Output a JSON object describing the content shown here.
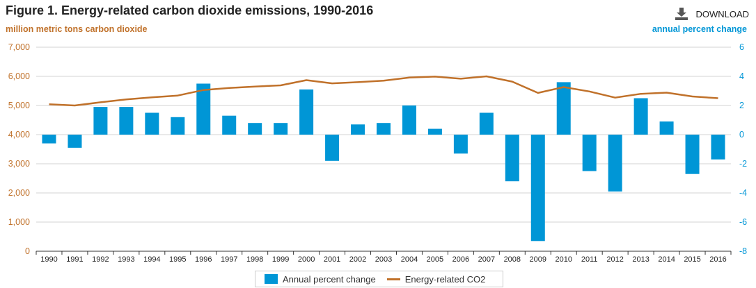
{
  "header": {
    "title": "Figure 1. Energy-related carbon dioxide emissions, 1990-2016",
    "left_axis_unit": "million metric tons carbon dioxide",
    "right_axis_unit": "annual percent change",
    "download_label": "DOWNLOAD",
    "download_icon": "download-icon"
  },
  "legend": {
    "bar_label": "Annual percent change",
    "line_label": "Energy-related CO2"
  },
  "colors": {
    "bar": "#0096d6",
    "line": "#c0712a",
    "left_axis_text": "#c0712a",
    "right_axis_text": "#0096d6",
    "grid": "#d3d3d3"
  },
  "chart_data": {
    "type": "bar+line",
    "categories": [
      "1990",
      "1991",
      "1992",
      "1993",
      "1994",
      "1995",
      "1996",
      "1997",
      "1998",
      "1999",
      "2000",
      "2001",
      "2002",
      "2003",
      "2004",
      "2005",
      "2006",
      "2007",
      "2008",
      "2009",
      "2010",
      "2011",
      "2012",
      "2013",
      "2014",
      "2015",
      "2016"
    ],
    "series": [
      {
        "name": "Annual percent change",
        "type": "bar",
        "axis": "right",
        "values": [
          -0.6,
          -0.9,
          1.9,
          1.9,
          1.5,
          1.2,
          3.5,
          1.3,
          0.8,
          0.8,
          3.1,
          -1.8,
          0.7,
          0.8,
          2.0,
          0.4,
          -1.3,
          1.5,
          -3.2,
          -7.3,
          3.6,
          -2.5,
          -3.9,
          2.5,
          0.9,
          -2.7,
          -1.7
        ]
      },
      {
        "name": "Energy-related CO2",
        "type": "line",
        "axis": "left",
        "values": [
          5040,
          5000,
          5110,
          5210,
          5280,
          5340,
          5530,
          5600,
          5650,
          5690,
          5870,
          5760,
          5800,
          5850,
          5960,
          5990,
          5920,
          6000,
          5820,
          5430,
          5630,
          5480,
          5270,
          5400,
          5440,
          5310,
          5250
        ]
      }
    ],
    "y_left": {
      "range": [
        0,
        7000
      ],
      "ticks": [
        0,
        1000,
        2000,
        3000,
        4000,
        5000,
        6000,
        7000
      ],
      "tick_labels": [
        "0",
        "1,000",
        "2,000",
        "3,000",
        "4,000",
        "5,000",
        "6,000",
        "7,000"
      ]
    },
    "y_right": {
      "range": [
        -8,
        6
      ],
      "ticks": [
        -8,
        -6,
        -4,
        -2,
        0,
        2,
        4,
        6
      ],
      "tick_labels": [
        "-8",
        "-6",
        "-4",
        "-2",
        "0",
        "2",
        "4",
        "6"
      ]
    },
    "grid": true,
    "legend_position": "bottom"
  }
}
